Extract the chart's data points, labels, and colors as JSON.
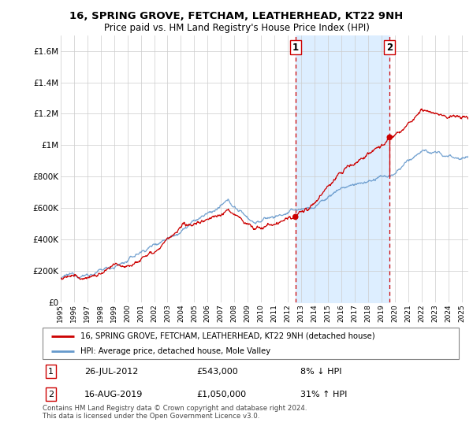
{
  "title": "16, SPRING GROVE, FETCHAM, LEATHERHEAD, KT22 9NH",
  "subtitle": "Price paid vs. HM Land Registry's House Price Index (HPI)",
  "legend_line1": "16, SPRING GROVE, FETCHAM, LEATHERHEAD, KT22 9NH (detached house)",
  "legend_line2": "HPI: Average price, detached house, Mole Valley",
  "annotation1_date": "26-JUL-2012",
  "annotation1_price": "£543,000",
  "annotation1_hpi": "8% ↓ HPI",
  "annotation2_date": "16-AUG-2019",
  "annotation2_price": "£1,050,000",
  "annotation2_hpi": "31% ↑ HPI",
  "footer": "Contains HM Land Registry data © Crown copyright and database right 2024.\nThis data is licensed under the Open Government Licence v3.0.",
  "sale_color": "#cc0000",
  "hpi_color": "#6699cc",
  "shaded_color": "#ddeeff",
  "ylim": [
    0,
    1700000
  ],
  "yticks": [
    0,
    200000,
    400000,
    600000,
    800000,
    1000000,
    1200000,
    1400000,
    1600000
  ],
  "ytick_labels": [
    "£0",
    "£200K",
    "£400K",
    "£600K",
    "£800K",
    "£1M",
    "£1.2M",
    "£1.4M",
    "£1.6M"
  ],
  "sale1_x": 2012.57,
  "sale1_y": 543000,
  "sale2_x": 2019.62,
  "sale2_y": 1050000,
  "vline1_x": 2012.57,
  "vline2_x": 2019.62,
  "xmin": 1995,
  "xmax": 2025.5
}
